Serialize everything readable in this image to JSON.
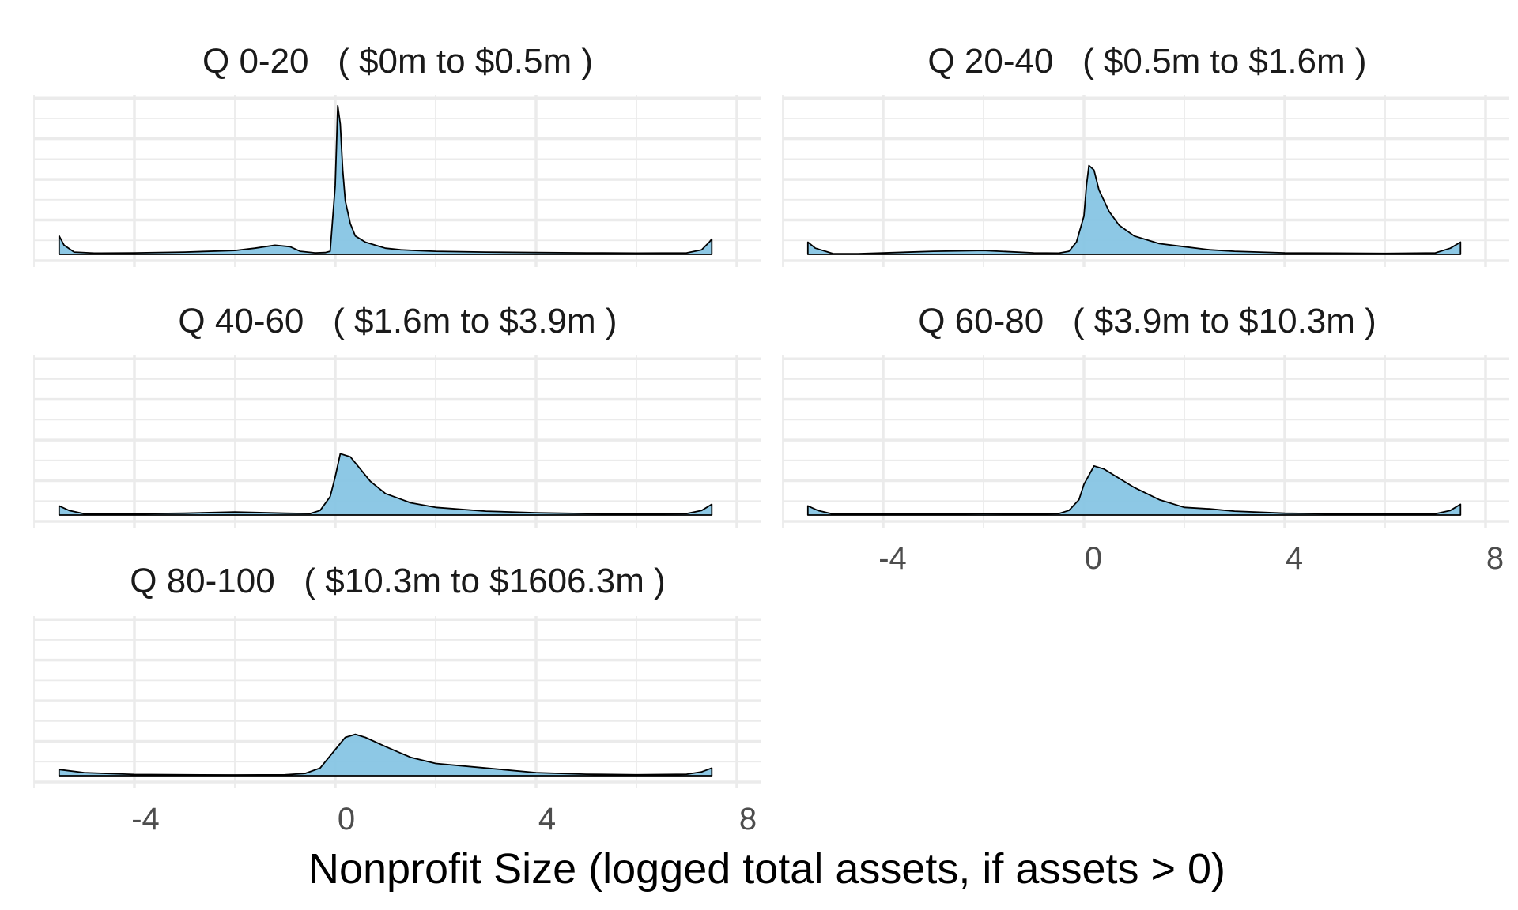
{
  "chart_data": {
    "type": "area",
    "xlabel": "Nonprofit Size (logged total assets, if assets > 0)",
    "ylabel": "",
    "xlim": [
      -5.5,
      7.5
    ],
    "x_ticks": [
      -4,
      0,
      4,
      8
    ],
    "grid": true,
    "fill_color": "#87c5e4",
    "outline_color": "#000000",
    "panels": [
      {
        "title": "Q 0-20   ( $0m to $0.5m )",
        "series": {
          "x": [
            -5.5,
            -5.4,
            -5.2,
            -4.8,
            -4.0,
            -3.0,
            -2.0,
            -1.6,
            -1.2,
            -0.9,
            -0.7,
            -0.4,
            -0.2,
            -0.1,
            0.0,
            0.05,
            0.1,
            0.15,
            0.2,
            0.3,
            0.4,
            0.6,
            0.8,
            1.0,
            1.3,
            1.6,
            2.0,
            3.0,
            4.0,
            5.0,
            6.0,
            7.0,
            7.3,
            7.45,
            7.5
          ],
          "y": [
            0.12,
            0.06,
            0.015,
            0.008,
            0.01,
            0.015,
            0.025,
            0.04,
            0.06,
            0.05,
            0.02,
            0.01,
            0.012,
            0.02,
            0.45,
            0.97,
            0.85,
            0.55,
            0.35,
            0.2,
            0.12,
            0.08,
            0.06,
            0.04,
            0.03,
            0.025,
            0.02,
            0.015,
            0.012,
            0.01,
            0.008,
            0.01,
            0.03,
            0.08,
            0.1
          ]
        }
      },
      {
        "title": "Q 20-40   ( $0.5m to $1.6m )",
        "series": {
          "x": [
            -5.5,
            -5.35,
            -5.0,
            -4.5,
            -3.0,
            -2.0,
            -1.0,
            -0.5,
            -0.3,
            -0.15,
            0.0,
            0.05,
            0.1,
            0.2,
            0.3,
            0.5,
            0.7,
            1.0,
            1.5,
            2.0,
            2.5,
            3.0,
            4.0,
            5.0,
            6.0,
            7.0,
            7.3,
            7.5
          ],
          "y": [
            0.08,
            0.04,
            0.005,
            0.004,
            0.02,
            0.025,
            0.01,
            0.008,
            0.02,
            0.08,
            0.25,
            0.45,
            0.58,
            0.55,
            0.42,
            0.28,
            0.19,
            0.12,
            0.07,
            0.05,
            0.03,
            0.02,
            0.01,
            0.008,
            0.006,
            0.01,
            0.04,
            0.08
          ]
        }
      },
      {
        "title": "Q 40-60   ( $1.6m to $3.9m )",
        "series": {
          "x": [
            -5.5,
            -5.3,
            -5.0,
            -4.0,
            -3.0,
            -2.0,
            -1.0,
            -0.5,
            -0.3,
            -0.1,
            0.0,
            0.1,
            0.3,
            0.5,
            0.7,
            1.0,
            1.5,
            2.0,
            3.0,
            4.0,
            5.0,
            6.0,
            7.0,
            7.3,
            7.5
          ],
          "y": [
            0.06,
            0.03,
            0.008,
            0.008,
            0.012,
            0.02,
            0.012,
            0.01,
            0.03,
            0.12,
            0.25,
            0.4,
            0.38,
            0.3,
            0.22,
            0.14,
            0.08,
            0.05,
            0.025,
            0.015,
            0.01,
            0.008,
            0.01,
            0.03,
            0.07
          ]
        }
      },
      {
        "title": "Q 60-80   ( $3.9m to $10.3m )",
        "series": {
          "x": [
            -5.5,
            -5.3,
            -5.0,
            -4.0,
            -2.0,
            -1.0,
            -0.5,
            -0.3,
            -0.1,
            0.0,
            0.2,
            0.4,
            0.6,
            1.0,
            1.5,
            2.0,
            2.5,
            3.0,
            4.0,
            5.0,
            6.0,
            7.0,
            7.3,
            7.5
          ],
          "y": [
            0.06,
            0.03,
            0.006,
            0.006,
            0.01,
            0.008,
            0.01,
            0.03,
            0.1,
            0.2,
            0.32,
            0.3,
            0.26,
            0.18,
            0.1,
            0.05,
            0.04,
            0.025,
            0.012,
            0.008,
            0.006,
            0.008,
            0.03,
            0.07
          ]
        }
      },
      {
        "title": "Q 80-100   ( $10.3m to $1606.3m )",
        "series": {
          "x": [
            -5.5,
            -5.0,
            -4.0,
            -3.0,
            -2.0,
            -1.0,
            -0.6,
            -0.3,
            0.0,
            0.2,
            0.4,
            0.6,
            1.0,
            1.5,
            2.0,
            3.0,
            4.0,
            5.0,
            6.0,
            7.0,
            7.3,
            7.5
          ],
          "y": [
            0.04,
            0.02,
            0.008,
            0.006,
            0.005,
            0.006,
            0.015,
            0.05,
            0.17,
            0.25,
            0.27,
            0.25,
            0.19,
            0.12,
            0.08,
            0.05,
            0.02,
            0.01,
            0.006,
            0.01,
            0.025,
            0.05
          ]
        }
      }
    ]
  }
}
